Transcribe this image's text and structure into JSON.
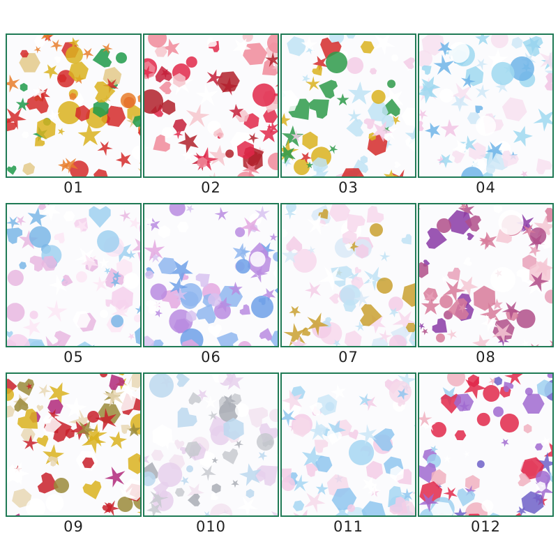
{
  "border_color": "#1f7a55",
  "items": [
    {
      "label": "01",
      "palette": [
        "#d42a2a",
        "#e3c98a",
        "#d9b21e",
        "#1f9a4a",
        "#e87c2a",
        "#ffffff"
      ]
    },
    {
      "label": "02",
      "palette": [
        "#e0284a",
        "#c41e3a",
        "#f08a9a",
        "#b0202a",
        "#f6c6cc",
        "#ffffff"
      ]
    },
    {
      "label": "03",
      "palette": [
        "#bfe3f5",
        "#f3cde6",
        "#d9b21e",
        "#d42a2a",
        "#2e9a4a",
        "#ffffff"
      ]
    },
    {
      "label": "04",
      "palette": [
        "#9fd8f0",
        "#f1c4e4",
        "#cfe8f7",
        "#6fb4e8",
        "#f7e0f0",
        "#ffffff"
      ]
    },
    {
      "label": "05",
      "palette": [
        "#e8b7e0",
        "#9fd0f0",
        "#f4d0ec",
        "#7ab6e6",
        "#fbe6f4",
        "#ffffff"
      ]
    },
    {
      "label": "06",
      "palette": [
        "#b88be0",
        "#8fb6ee",
        "#e3a8e0",
        "#6fa0e8",
        "#d7c2f0",
        "#ffffff"
      ]
    },
    {
      "label": "07",
      "palette": [
        "#bfe2f5",
        "#f3cde6",
        "#d9e9f7",
        "#f7d8ec",
        "#c9a030",
        "#ffffff"
      ]
    },
    {
      "label": "08",
      "palette": [
        "#8a3aa6",
        "#d77a9a",
        "#e8a0b8",
        "#b04f8a",
        "#f5c7d3",
        "#ffffff"
      ]
    },
    {
      "label": "09",
      "palette": [
        "#d9b21e",
        "#c8202a",
        "#b0287a",
        "#e7d7b4",
        "#9a8a3a",
        "#ffffff"
      ]
    },
    {
      "label": "010",
      "palette": [
        "#c7c9cf",
        "#e6d0ec",
        "#bcd8ef",
        "#a9adb5",
        "#f2e3f0",
        "#ffffff"
      ]
    },
    {
      "label": "011",
      "palette": [
        "#a6d6f2",
        "#f3cde6",
        "#cbe6f7",
        "#f6d9ea",
        "#8fc6ee",
        "#ffffff"
      ]
    },
    {
      "label": "012",
      "palette": [
        "#a06ad0",
        "#e0284a",
        "#f0b0c0",
        "#9fd0f0",
        "#6f60c8",
        "#ffffff"
      ]
    }
  ]
}
